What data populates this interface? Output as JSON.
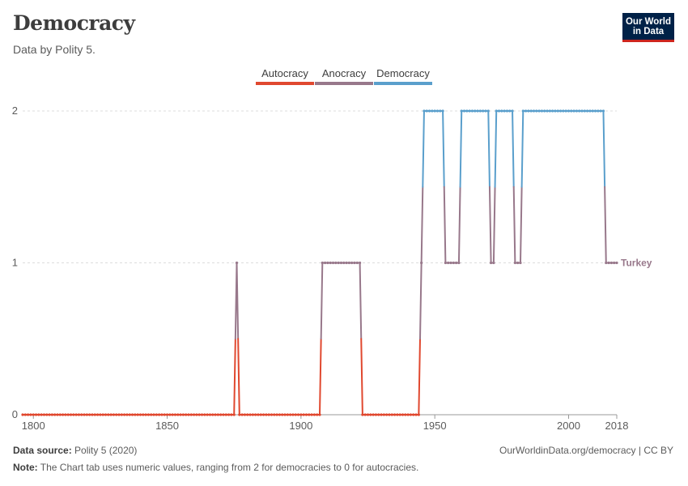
{
  "title": "Democracy",
  "subtitle": "Data by Polity 5.",
  "logo": {
    "line1": "Our World",
    "line2": "in Data"
  },
  "footer": {
    "source_label": "Data source:",
    "source_text": "Polity 5 (2020)",
    "right_text": "OurWorldinData.org/democracy | CC BY",
    "note_label": "Note:",
    "note_text": "The Chart tab uses numeric values, ranging from 2 for democracies to 0 for autocracies."
  },
  "colors": {
    "autocracy": "#e0482f",
    "anocracy": "#98788b",
    "democracy": "#5a9fcc",
    "grid": "#dddddd",
    "axis": "#999999",
    "text": "#5b5b5b"
  },
  "chart_data": {
    "type": "line",
    "title": "Democracy",
    "subtitle": "Data by Polity 5.",
    "series_name": "Turkey",
    "xlabel": "",
    "ylabel": "",
    "xlim": [
      1796,
      2018
    ],
    "ylim": [
      0,
      2
    ],
    "x_ticks": [
      1800,
      1850,
      1900,
      1950,
      2000,
      2018
    ],
    "y_ticks": [
      0,
      1,
      2
    ],
    "legend": [
      {
        "label": "Autocracy",
        "value": 0,
        "color": "#e0482f"
      },
      {
        "label": "Anocracy",
        "value": 1,
        "color": "#98788b"
      },
      {
        "label": "Democracy",
        "value": 2,
        "color": "#5a9fcc"
      }
    ],
    "legend_position": "top-center",
    "grid": true,
    "segments": [
      {
        "start": 1796,
        "end": 1875,
        "value": 0
      },
      {
        "start": 1876,
        "end": 1876,
        "value": 1
      },
      {
        "start": 1877,
        "end": 1907,
        "value": 0
      },
      {
        "start": 1908,
        "end": 1917,
        "value": 1
      },
      {
        "start": 1918,
        "end": 1920,
        "value": 1
      },
      {
        "start": 1921,
        "end": 1922,
        "value": 1
      },
      {
        "start": 1923,
        "end": 1944,
        "value": 0
      },
      {
        "start": 1945,
        "end": 1945,
        "value": 1
      },
      {
        "start": 1946,
        "end": 1953,
        "value": 2
      },
      {
        "start": 1954,
        "end": 1959,
        "value": 1
      },
      {
        "start": 1960,
        "end": 1970,
        "value": 2
      },
      {
        "start": 1971,
        "end": 1972,
        "value": 1
      },
      {
        "start": 1973,
        "end": 1979,
        "value": 2
      },
      {
        "start": 1980,
        "end": 1982,
        "value": 1
      },
      {
        "start": 1983,
        "end": 2013,
        "value": 2
      },
      {
        "start": 2014,
        "end": 2018,
        "value": 1
      }
    ]
  }
}
